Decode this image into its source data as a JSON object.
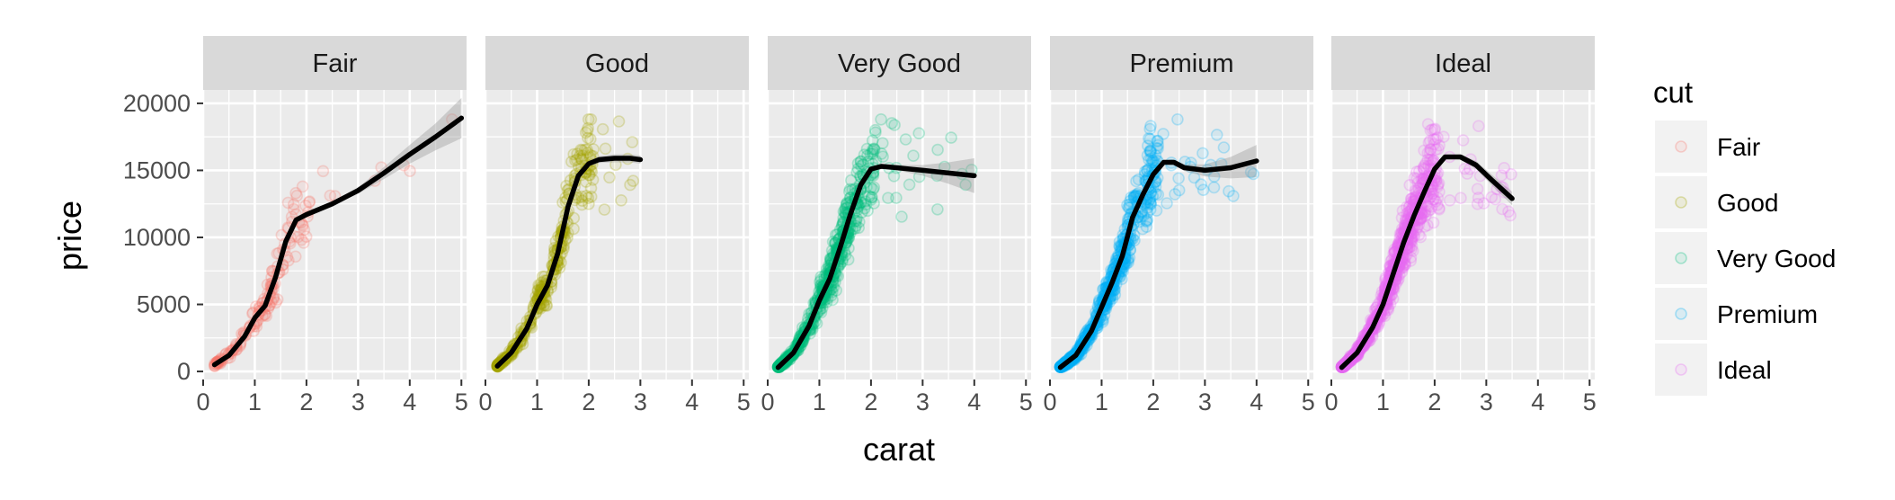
{
  "chart_data": {
    "type": "scatter",
    "facet_variable": "cut",
    "xlabel": "carat",
    "ylabel": "price",
    "xlim": [
      0,
      5.1
    ],
    "ylim": [
      -600,
      21000
    ],
    "x_ticks": [
      0,
      1,
      2,
      3,
      4,
      5
    ],
    "x_tick_labels": [
      "0",
      "1",
      "2",
      "3",
      "4",
      "5"
    ],
    "y_ticks": [
      0,
      5000,
      10000,
      15000,
      20000
    ],
    "y_tick_labels": [
      "0",
      "5000",
      "10000",
      "15000",
      "20000"
    ],
    "grid": true,
    "legend": {
      "title": "cut",
      "position": "right",
      "entries": [
        "Fair",
        "Good",
        "Very Good",
        "Premium",
        "Ideal"
      ]
    },
    "point_alpha": 0.1,
    "smooth_color": "#000000",
    "panels": [
      {
        "label": "Fair",
        "color": "#F8766D",
        "point_density": 0.6,
        "x_range": [
          0.22,
          5.01
        ],
        "smooth": [
          [
            0.22,
            500
          ],
          [
            0.5,
            1200
          ],
          [
            0.8,
            2600
          ],
          [
            1.0,
            4000
          ],
          [
            1.2,
            4900
          ],
          [
            1.4,
            7000
          ],
          [
            1.6,
            9700
          ],
          [
            1.8,
            11300
          ],
          [
            2.0,
            11700
          ],
          [
            2.5,
            12500
          ],
          [
            3.0,
            13500
          ],
          [
            3.5,
            14800
          ],
          [
            4.0,
            16200
          ],
          [
            4.5,
            17500
          ],
          [
            5.0,
            18900
          ]
        ],
        "se": [
          0,
          0,
          0,
          0,
          0,
          0,
          0,
          0,
          0,
          100,
          250,
          450,
          700,
          1000,
          1500
        ]
      },
      {
        "label": "Good",
        "color": "#A3A500",
        "point_density": 1.3,
        "x_range": [
          0.23,
          3.01
        ],
        "smooth": [
          [
            0.23,
            400
          ],
          [
            0.5,
            1400
          ],
          [
            0.8,
            3200
          ],
          [
            1.0,
            5000
          ],
          [
            1.2,
            6400
          ],
          [
            1.4,
            8800
          ],
          [
            1.6,
            12300
          ],
          [
            1.8,
            14600
          ],
          [
            2.0,
            15500
          ],
          [
            2.2,
            15800
          ],
          [
            2.5,
            15900
          ],
          [
            2.8,
            15900
          ],
          [
            3.0,
            15800
          ]
        ],
        "se": [
          0,
          0,
          0,
          0,
          0,
          0,
          0,
          150,
          200,
          250,
          300,
          300,
          300
        ]
      },
      {
        "label": "Very Good",
        "color": "#00BF7D",
        "point_density": 2.3,
        "x_range": [
          0.2,
          4.0
        ],
        "smooth": [
          [
            0.2,
            300
          ],
          [
            0.5,
            1400
          ],
          [
            0.8,
            3400
          ],
          [
            1.0,
            5300
          ],
          [
            1.2,
            6900
          ],
          [
            1.4,
            9200
          ],
          [
            1.6,
            11700
          ],
          [
            1.8,
            13900
          ],
          [
            2.0,
            15100
          ],
          [
            2.2,
            15300
          ],
          [
            2.5,
            15200
          ],
          [
            3.0,
            15000
          ],
          [
            3.5,
            14800
          ],
          [
            4.0,
            14600
          ]
        ],
        "se": [
          0,
          0,
          0,
          0,
          0,
          0,
          0,
          0,
          100,
          150,
          200,
          400,
          800,
          1300
        ]
      },
      {
        "label": "Premium",
        "color": "#00B0F6",
        "point_density": 2.6,
        "x_range": [
          0.2,
          4.01
        ],
        "smooth": [
          [
            0.2,
            300
          ],
          [
            0.5,
            1200
          ],
          [
            0.8,
            3000
          ],
          [
            1.0,
            4800
          ],
          [
            1.2,
            6600
          ],
          [
            1.4,
            8600
          ],
          [
            1.6,
            11500
          ],
          [
            1.8,
            13200
          ],
          [
            2.0,
            14700
          ],
          [
            2.2,
            15600
          ],
          [
            2.4,
            15600
          ],
          [
            2.6,
            15200
          ],
          [
            3.0,
            15000
          ],
          [
            3.5,
            15200
          ],
          [
            4.0,
            15700
          ]
        ],
        "se": [
          0,
          0,
          0,
          0,
          0,
          0,
          0,
          0,
          100,
          150,
          200,
          250,
          450,
          800,
          1200
        ]
      },
      {
        "label": "Ideal",
        "color": "#E76BF3",
        "point_density": 3.6,
        "x_range": [
          0.2,
          3.5
        ],
        "smooth": [
          [
            0.2,
            300
          ],
          [
            0.5,
            1400
          ],
          [
            0.8,
            3300
          ],
          [
            1.0,
            5000
          ],
          [
            1.2,
            7300
          ],
          [
            1.4,
            9600
          ],
          [
            1.6,
            11600
          ],
          [
            1.8,
            13400
          ],
          [
            2.0,
            15100
          ],
          [
            2.2,
            16000
          ],
          [
            2.5,
            16000
          ],
          [
            2.8,
            15400
          ],
          [
            3.1,
            14300
          ],
          [
            3.5,
            12900
          ]
        ],
        "se": [
          0,
          0,
          0,
          0,
          0,
          0,
          0,
          0,
          0,
          100,
          200,
          300,
          400,
          500
        ]
      }
    ]
  }
}
